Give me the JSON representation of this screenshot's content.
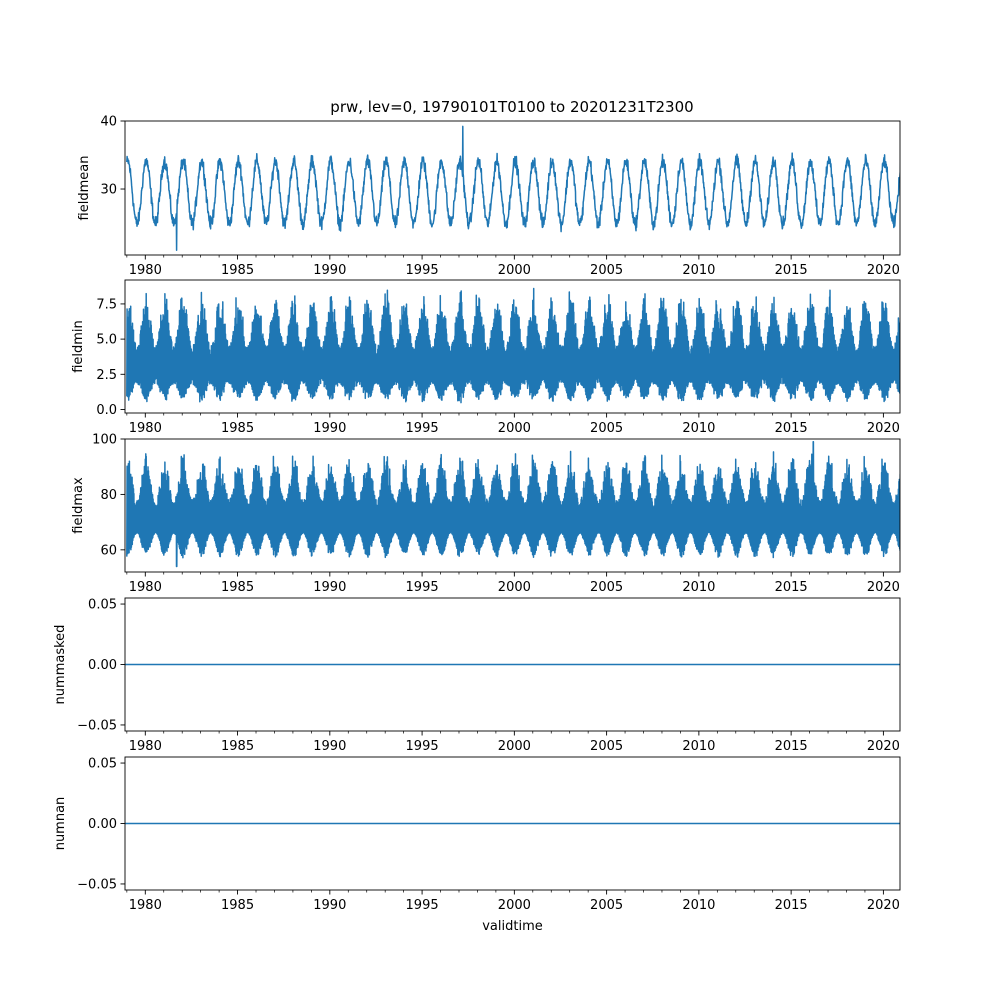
{
  "title": "prw, lev=0, 19790101T0100 to 20201231T2300",
  "line_color": "#1f77b4",
  "chart_data": [
    {
      "type": "line",
      "ylabel": "fieldmean",
      "xlabel": "",
      "x_range": [
        "1979-01-01T01:00",
        "2020-12-31T23:00"
      ],
      "xlim": [
        1978.9,
        2020.9
      ],
      "ylim": [
        20.3,
        40
      ],
      "yticks": [
        30,
        40
      ],
      "ytick_labels": [
        "30",
        "40"
      ],
      "xticks": [
        1980,
        1985,
        1990,
        1995,
        2000,
        2005,
        2010,
        2015,
        2020
      ],
      "xtick_labels": [
        "1980",
        "1985",
        "1990",
        "1995",
        "2000",
        "2005",
        "2010",
        "2015",
        "2020"
      ],
      "series": [
        {
          "baseline": 29.5,
          "seasonal_amplitude": 4.6,
          "noise": 1.4,
          "peak_year": 1997.2,
          "peak_value": 39.2,
          "min_year": 1981.7,
          "min_value": 21.0
        }
      ]
    },
    {
      "type": "line",
      "ylabel": "fieldmin",
      "xlabel": "",
      "x_range": [
        "1979-01-01T01:00",
        "2020-12-31T23:00"
      ],
      "xlim": [
        1978.9,
        2020.9
      ],
      "ylim": [
        -0.25,
        9.2
      ],
      "yticks": [
        0.0,
        2.5,
        5.0,
        7.5
      ],
      "ytick_labels": [
        "0.0",
        "2.5",
        "5.0",
        "7.5"
      ],
      "xticks": [
        1980,
        1985,
        1990,
        1995,
        2000,
        2005,
        2010,
        2015,
        2020
      ],
      "xtick_labels": [
        "1980",
        "1985",
        "1990",
        "1995",
        "2000",
        "2005",
        "2010",
        "2015",
        "2020"
      ],
      "series": [
        {
          "low_min": 0.4,
          "low_max": 1.8,
          "high_min": 4.5,
          "high_max": 8.8
        }
      ]
    },
    {
      "type": "line",
      "ylabel": "fieldmax",
      "xlabel": "",
      "x_range": [
        "1979-01-01T01:00",
        "2020-12-31T23:00"
      ],
      "xlim": [
        1978.9,
        2020.9
      ],
      "ylim": [
        52,
        100
      ],
      "yticks": [
        60,
        80,
        100
      ],
      "ytick_labels": [
        "60",
        "80",
        "100"
      ],
      "xticks": [
        1980,
        1985,
        1990,
        1995,
        2000,
        2005,
        2010,
        2015,
        2020
      ],
      "xtick_labels": [
        "1980",
        "1985",
        "1990",
        "1995",
        "2000",
        "2005",
        "2010",
        "2015",
        "2020"
      ],
      "series": [
        {
          "low_min": 57,
          "low_max": 66,
          "high_min": 78,
          "high_max": 96,
          "peak_year": 2016.2,
          "peak_value": 99,
          "min_year": 1981.7,
          "min_value": 54
        }
      ]
    },
    {
      "type": "line",
      "ylabel": "nummasked",
      "xlabel": "",
      "x_range": [
        "1979-01-01T01:00",
        "2020-12-31T23:00"
      ],
      "xlim": [
        1978.9,
        2020.9
      ],
      "ylim": [
        -0.055,
        0.055
      ],
      "yticks": [
        -0.05,
        0.0,
        0.05
      ],
      "ytick_labels": [
        "−0.05",
        "0.00",
        "0.05"
      ],
      "xticks": [
        1980,
        1985,
        1990,
        1995,
        2000,
        2005,
        2010,
        2015,
        2020
      ],
      "xtick_labels": [
        "1980",
        "1985",
        "1990",
        "1995",
        "2000",
        "2005",
        "2010",
        "2015",
        "2020"
      ],
      "series": [
        {
          "constant": 0.0
        }
      ]
    },
    {
      "type": "line",
      "ylabel": "numnan",
      "xlabel": "validtime",
      "x_range": [
        "1979-01-01T01:00",
        "2020-12-31T23:00"
      ],
      "xlim": [
        1978.9,
        2020.9
      ],
      "ylim": [
        -0.055,
        0.055
      ],
      "yticks": [
        -0.05,
        0.0,
        0.05
      ],
      "ytick_labels": [
        "−0.05",
        "0.00",
        "0.05"
      ],
      "xticks": [
        1980,
        1985,
        1990,
        1995,
        2000,
        2005,
        2010,
        2015,
        2020
      ],
      "xtick_labels": [
        "1980",
        "1985",
        "1990",
        "1995",
        "2000",
        "2005",
        "2010",
        "2015",
        "2020"
      ],
      "series": [
        {
          "constant": 0.0
        }
      ]
    }
  ]
}
